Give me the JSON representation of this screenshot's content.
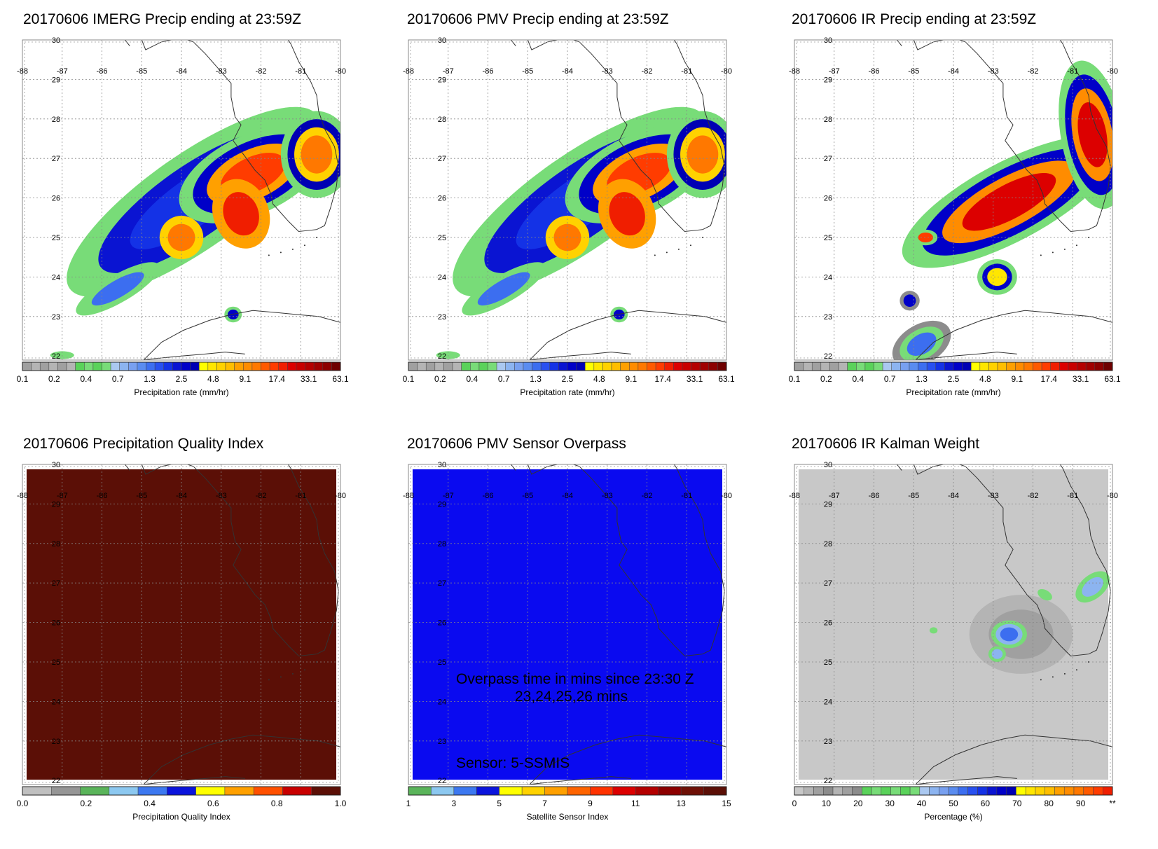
{
  "colors": {
    "quality_fill": "#5b0f06",
    "sensor_fill": "#0a0af0",
    "kalman_fill": "#c8c8c8",
    "background": "#ffffff"
  },
  "map_grid": {
    "lon_labels": [
      "-88",
      "-87",
      "-86",
      "-85",
      "-84",
      "-83",
      "-82",
      "-81",
      "-80"
    ],
    "lat_labels": [
      "30",
      "29",
      "28",
      "27",
      "26",
      "25",
      "24",
      "23",
      "22"
    ]
  },
  "panels": [
    {
      "id": "imerg",
      "title": "20170606 IMERG Precip ending at 23:59Z",
      "field": "precip",
      "colorbar": {
        "label": "Precipitation rate (mm/hr)",
        "ticks": [
          "0.1",
          "0.2",
          "0.4",
          "0.7",
          "1.3",
          "2.5",
          "4.8",
          "9.1",
          "17.4",
          "33.1",
          "63.1"
        ],
        "colors": [
          "#a0a0a0",
          "#b4b4b4",
          "#a0a0a0",
          "#b4b4b4",
          "#a0a0a0",
          "#b4b4b4",
          "#5ad25a",
          "#78dc78",
          "#5ad25a",
          "#78dc78",
          "#aac8f0",
          "#8cb4f0",
          "#78a0f0",
          "#5a8cf0",
          "#3c6ef0",
          "#2850f0",
          "#1432e6",
          "#0a14d2",
          "#0000c8",
          "#0000b4",
          "#ffff00",
          "#ffe600",
          "#ffd200",
          "#ffbe00",
          "#ffa000",
          "#ff8c00",
          "#ff7800",
          "#ff5a00",
          "#ff3c00",
          "#f01e00",
          "#dc0000",
          "#c80000",
          "#b40000",
          "#a00000",
          "#8c0000",
          "#6e0000"
        ]
      }
    },
    {
      "id": "pmv",
      "title": "20170606 PMV Precip ending at 23:59Z",
      "field": "precip",
      "colorbar": {
        "label": "Precipitation rate (mm/hr)",
        "ticks": [
          "0.1",
          "0.2",
          "0.4",
          "0.7",
          "1.3",
          "2.5",
          "4.8",
          "9.1",
          "17.4",
          "33.1",
          "63.1"
        ],
        "colors": [
          "#a0a0a0",
          "#b4b4b4",
          "#a0a0a0",
          "#b4b4b4",
          "#a0a0a0",
          "#b4b4b4",
          "#5ad25a",
          "#78dc78",
          "#5ad25a",
          "#78dc78",
          "#aac8f0",
          "#8cb4f0",
          "#78a0f0",
          "#5a8cf0",
          "#3c6ef0",
          "#2850f0",
          "#1432e6",
          "#0a14d2",
          "#0000c8",
          "#0000b4",
          "#ffff00",
          "#ffe600",
          "#ffd200",
          "#ffbe00",
          "#ffa000",
          "#ff8c00",
          "#ff7800",
          "#ff5a00",
          "#ff3c00",
          "#f01e00",
          "#dc0000",
          "#c80000",
          "#b40000",
          "#a00000",
          "#8c0000",
          "#6e0000"
        ]
      }
    },
    {
      "id": "ir",
      "title": "20170606 IR Precip ending at 23:59Z",
      "field": "precip_ir",
      "colorbar": {
        "label": "Precipitation rate (mm/hr)",
        "ticks": [
          "0.1",
          "0.2",
          "0.4",
          "0.7",
          "1.3",
          "2.5",
          "4.8",
          "9.1",
          "17.4",
          "33.1",
          "63.1"
        ],
        "colors": [
          "#a0a0a0",
          "#b4b4b4",
          "#a0a0a0",
          "#b4b4b4",
          "#a0a0a0",
          "#b4b4b4",
          "#5ad25a",
          "#78dc78",
          "#5ad25a",
          "#78dc78",
          "#aac8f0",
          "#8cb4f0",
          "#78a0f0",
          "#5a8cf0",
          "#3c6ef0",
          "#2850f0",
          "#1432e6",
          "#0a14d2",
          "#0000c8",
          "#0000b4",
          "#ffff00",
          "#ffe600",
          "#ffd200",
          "#ffbe00",
          "#ffa000",
          "#ff8c00",
          "#ff7800",
          "#ff5a00",
          "#ff3c00",
          "#f01e00",
          "#dc0000",
          "#c80000",
          "#b40000",
          "#a00000",
          "#8c0000",
          "#6e0000"
        ]
      }
    },
    {
      "id": "quality",
      "title": "20170606 Precipitation Quality Index",
      "field": "quality",
      "colorbar": {
        "label": "Precipitation Quality Index",
        "ticks": [
          "0.0",
          "0.2",
          "0.4",
          "0.6",
          "0.8",
          "1.0"
        ],
        "colors": [
          "#c0c0c0",
          "#969696",
          "#5ab45a",
          "#8cc8f0",
          "#3c78f0",
          "#0a14dc",
          "#ffff00",
          "#ffa000",
          "#ff5000",
          "#c80000",
          "#5b0f06"
        ]
      }
    },
    {
      "id": "sensor",
      "title": "20170606 PMV Sensor Overpass",
      "field": "sensor",
      "overlay_text": {
        "overpass_line1": "Overpass time in mins since 23:30 Z",
        "overpass_line2": "23,24,25,26 mins",
        "sensor_line": "Sensor:   5-SSMIS"
      },
      "colorbar": {
        "label": "Satellite Sensor Index",
        "ticks": [
          "1",
          "3",
          "5",
          "7",
          "9",
          "11",
          "13",
          "15"
        ],
        "colors": [
          "#5ab45a",
          "#8cc8f0",
          "#3c78f0",
          "#0a14dc",
          "#ffff00",
          "#ffd200",
          "#ffa000",
          "#ff6400",
          "#ff3200",
          "#dc0000",
          "#b40000",
          "#8c0000",
          "#6e1006",
          "#5b0f06"
        ]
      }
    },
    {
      "id": "kalman",
      "title": "20170606 IR Kalman Weight",
      "field": "kalman",
      "colorbar": {
        "label": "Percentage (%)",
        "ticks": [
          "0",
          "10",
          "20",
          "30",
          "40",
          "50",
          "60",
          "70",
          "80",
          "90",
          "**"
        ],
        "colors": [
          "#c8c8c8",
          "#b4b4b4",
          "#a0a0a0",
          "#8c8c8c",
          "#b4b4b4",
          "#a0a0a0",
          "#8c8c8c",
          "#5ad25a",
          "#78dc78",
          "#5ad25a",
          "#78dc78",
          "#5ad25a",
          "#78dc78",
          "#aac8f0",
          "#8cb4f0",
          "#78a0f0",
          "#5a8cf0",
          "#3c6ef0",
          "#2850f0",
          "#1432e6",
          "#0a14d2",
          "#0000c8",
          "#0000b4",
          "#ffff00",
          "#ffe600",
          "#ffd200",
          "#ffbe00",
          "#ffa000",
          "#ff8c00",
          "#ff7800",
          "#ff5a00",
          "#ff3c00",
          "#f01e00"
        ]
      }
    }
  ]
}
